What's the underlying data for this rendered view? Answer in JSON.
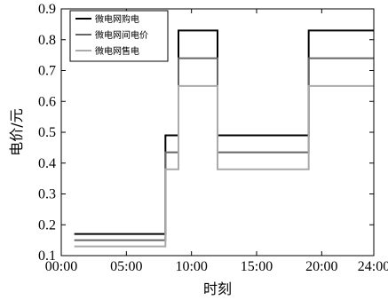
{
  "chart_data": {
    "type": "line",
    "style": "step",
    "xlabel": "时刻",
    "ylabel": "电价/元",
    "xlim": [
      0,
      24
    ],
    "ylim": [
      0.1,
      0.9
    ],
    "x_ticks": [
      0,
      5,
      10,
      15,
      20,
      24
    ],
    "x_tick_labels": [
      "00:00",
      "05:00",
      "10:00",
      "15:00",
      "20:00",
      "24:00"
    ],
    "y_ticks": [
      0.1,
      0.2,
      0.3,
      0.4,
      0.5,
      0.6,
      0.7,
      0.8,
      0.9
    ],
    "y_tick_labels": [
      "0.1",
      "0.2",
      "0.3",
      "0.4",
      "0.5",
      "0.6",
      "0.7",
      "0.8",
      "0.9"
    ],
    "grid": false,
    "legend_position": "top-left",
    "series": [
      {
        "name": "微电网购电",
        "color": "#000000",
        "x": [
          1,
          8,
          8,
          9,
          9,
          12,
          12,
          19,
          19,
          24
        ],
        "y": [
          0.17,
          0.17,
          0.49,
          0.49,
          0.83,
          0.83,
          0.49,
          0.49,
          0.83,
          0.83
        ]
      },
      {
        "name": "微电网间电价",
        "color": "#666666",
        "x": [
          1,
          8,
          8,
          9,
          9,
          12,
          12,
          19,
          19,
          24
        ],
        "y": [
          0.15,
          0.15,
          0.435,
          0.435,
          0.74,
          0.74,
          0.435,
          0.435,
          0.74,
          0.74
        ]
      },
      {
        "name": "微电网售电",
        "color": "#aaaaaa",
        "x": [
          1,
          8,
          8,
          9,
          9,
          12,
          12,
          19,
          19,
          24
        ],
        "y": [
          0.13,
          0.13,
          0.38,
          0.38,
          0.65,
          0.65,
          0.38,
          0.38,
          0.65,
          0.65
        ]
      }
    ]
  }
}
